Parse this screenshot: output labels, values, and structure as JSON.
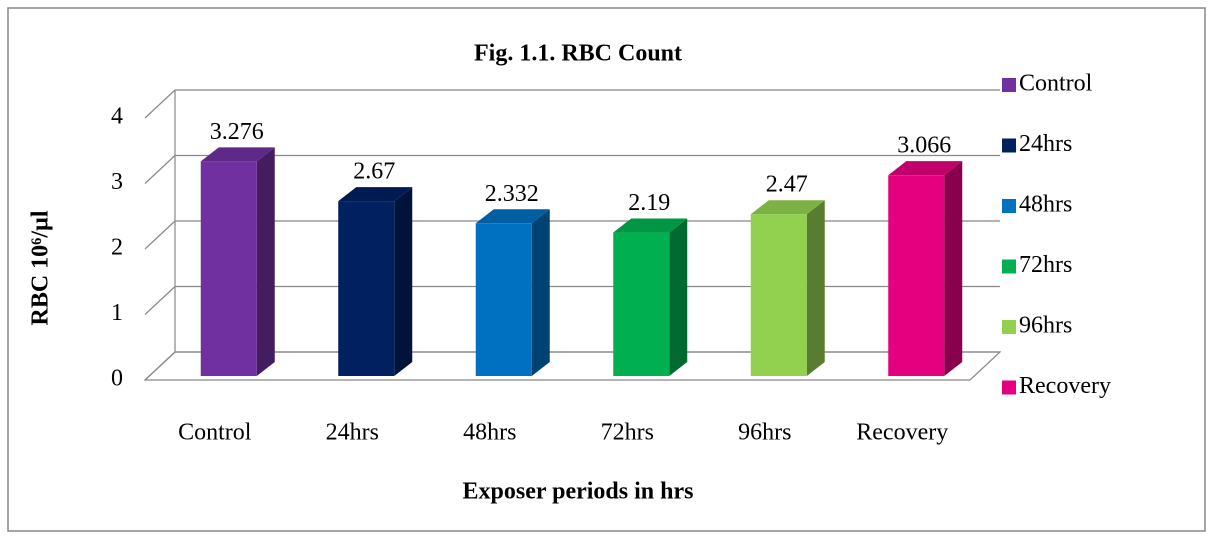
{
  "chart_data": {
    "type": "bar3d",
    "title": "Fig. 1.1. RBC Count",
    "categories": [
      "Control",
      "24hrs",
      "48hrs",
      "72hrs",
      "96hrs",
      "Recovery"
    ],
    "values": [
      3.276,
      2.67,
      2.332,
      2.19,
      2.47,
      3.066
    ],
    "colors": [
      "#7030a0",
      "#002060",
      "#0070c0",
      "#00b050",
      "#92d050",
      "#e4007f"
    ],
    "ylim": [
      0,
      4
    ],
    "yticks": [
      0,
      1,
      2,
      3,
      4
    ],
    "grid": true,
    "x_label": "Exposer periods in hrs",
    "y_label": "RBC 10⁶/µl",
    "legend": "right"
  }
}
